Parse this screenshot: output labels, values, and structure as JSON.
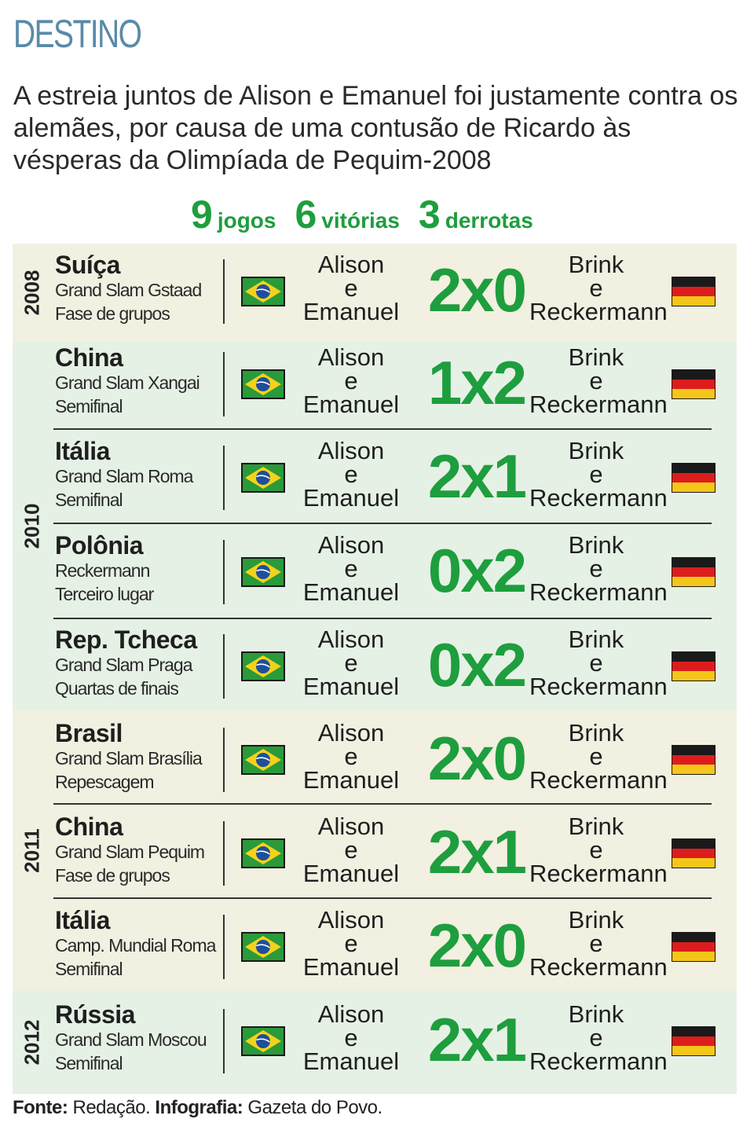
{
  "header": {
    "title": "DESTINO",
    "intro": "A estreia juntos de Alison e Emanuel foi justamente contra os alemães, por causa de uma contusão de Ricardo às vésperas da Olimpíada de Pequim-2008"
  },
  "summary": {
    "games_count": "9",
    "games_label": "jogos",
    "wins_count": "6",
    "wins_label": "vitórias",
    "losses_count": "3",
    "losses_label": "derrotas"
  },
  "colors": {
    "band_light": "#f2f0e1",
    "band_green": "#e6f1e6",
    "score_green": "#1e9e3e",
    "title_blue": "#5a8aa8"
  },
  "years": [
    {
      "label": "2008"
    },
    {
      "label": "2010"
    },
    {
      "label": "2011"
    },
    {
      "label": "2012"
    }
  ],
  "matches": [
    {
      "country": "Suíça",
      "event": "Grand Slam Gstaad",
      "phase": "Fase de grupos",
      "team_left_1": "Alison",
      "team_left_2": "e",
      "team_left_3": "Emanuel",
      "score": "2x0",
      "team_right_1": "Brink",
      "team_right_2": "e",
      "team_right_3": "Reckermann",
      "flag_left": "brazil-flag-icon",
      "flag_right": "germany-flag-icon"
    },
    {
      "country": "China",
      "event": "Grand Slam Xangai",
      "phase": "Semifinal",
      "team_left_1": "Alison",
      "team_left_2": "e",
      "team_left_3": "Emanuel",
      "score": "1x2",
      "team_right_1": "Brink",
      "team_right_2": "e",
      "team_right_3": "Reckermann",
      "flag_left": "brazil-flag-icon",
      "flag_right": "germany-flag-icon"
    },
    {
      "country": "Itália",
      "event": "Grand Slam Roma",
      "phase": "Semifinal",
      "team_left_1": "Alison",
      "team_left_2": "e",
      "team_left_3": "Emanuel",
      "score": "2x1",
      "team_right_1": "Brink",
      "team_right_2": "e",
      "team_right_3": "Reckermann",
      "flag_left": "brazil-flag-icon",
      "flag_right": "germany-flag-icon"
    },
    {
      "country": "Polônia",
      "event": "Reckermann",
      "phase": "Terceiro lugar",
      "team_left_1": "Alison",
      "team_left_2": "e",
      "team_left_3": "Emanuel",
      "score": "0x2",
      "team_right_1": "Brink",
      "team_right_2": "e",
      "team_right_3": "Reckermann",
      "flag_left": "brazil-flag-icon",
      "flag_right": "germany-flag-icon"
    },
    {
      "country": "Rep. Tcheca",
      "event": "Grand Slam Praga",
      "phase": "Quartas de finais",
      "team_left_1": "Alison",
      "team_left_2": "e",
      "team_left_3": "Emanuel",
      "score": "0x2",
      "team_right_1": "Brink",
      "team_right_2": "e",
      "team_right_3": "Reckermann",
      "flag_left": "brazil-flag-icon",
      "flag_right": "germany-flag-icon"
    },
    {
      "country": "Brasil",
      "event": "Grand Slam Brasília",
      "phase": "Repescagem",
      "team_left_1": "Alison",
      "team_left_2": "e",
      "team_left_3": "Emanuel",
      "score": "2x0",
      "team_right_1": "Brink",
      "team_right_2": "e",
      "team_right_3": "Reckermann",
      "flag_left": "brazil-flag-icon",
      "flag_right": "germany-flag-icon"
    },
    {
      "country": "China",
      "event": "Grand Slam Pequim",
      "phase": "Fase de grupos",
      "team_left_1": "Alison",
      "team_left_2": "e",
      "team_left_3": "Emanuel",
      "score": "2x1",
      "team_right_1": "Brink",
      "team_right_2": "e",
      "team_right_3": "Reckermann",
      "flag_left": "brazil-flag-icon",
      "flag_right": "germany-flag-icon"
    },
    {
      "country": "Itália",
      "event": "Camp. Mundial Roma",
      "phase": "Semifinal",
      "team_left_1": "Alison",
      "team_left_2": "e",
      "team_left_3": "Emanuel",
      "score": "2x0",
      "team_right_1": "Brink",
      "team_right_2": "e",
      "team_right_3": "Reckermann",
      "flag_left": "brazil-flag-icon",
      "flag_right": "germany-flag-icon"
    },
    {
      "country": "Rússia",
      "event": "Grand Slam Moscou",
      "phase": "Semifinal",
      "team_left_1": "Alison",
      "team_left_2": "e",
      "team_left_3": "Emanuel",
      "score": "2x1",
      "team_right_1": "Brink",
      "team_right_2": "e",
      "team_right_3": "Reckermann",
      "flag_left": "brazil-flag-icon",
      "flag_right": "germany-flag-icon"
    }
  ],
  "footer": {
    "source_label": "Fonte:",
    "source_value": "Redação.",
    "infographic_label": "Infografia:",
    "infographic_value": "Gazeta do Povo."
  }
}
